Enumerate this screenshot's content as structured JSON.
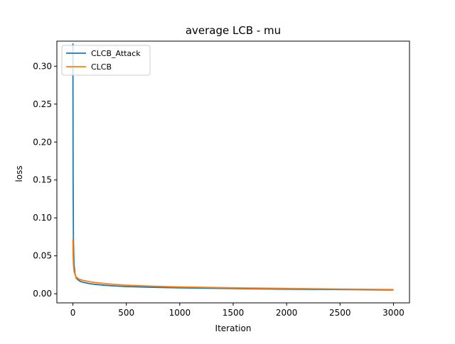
{
  "chart_data": {
    "type": "line",
    "title": "average LCB - mu",
    "xlabel": "Iteration",
    "ylabel": "loss",
    "xlim": [
      -150,
      3150
    ],
    "ylim": [
      -0.012,
      0.333
    ],
    "xticks": [
      0,
      500,
      1000,
      1500,
      2000,
      2500,
      3000
    ],
    "xtick_labels": [
      "0",
      "500",
      "1000",
      "1500",
      "2000",
      "2500",
      "3000"
    ],
    "yticks": [
      0.0,
      0.05,
      0.1,
      0.15,
      0.2,
      0.25,
      0.3
    ],
    "ytick_labels": [
      "0.00",
      "0.05",
      "0.10",
      "0.15",
      "0.20",
      "0.25",
      "0.30"
    ],
    "grid": false,
    "legend_position": "upper-left",
    "series": [
      {
        "name": "CLCB_Attack",
        "color": "#1f77b4",
        "x": [
          0,
          2,
          5,
          10,
          20,
          30,
          50,
          75,
          100,
          150,
          200,
          300,
          400,
          500,
          750,
          1000,
          1500,
          2000,
          2500,
          3000
        ],
        "y": [
          0.33,
          0.15,
          0.07,
          0.04,
          0.026,
          0.021,
          0.018,
          0.016,
          0.015,
          0.0135,
          0.0125,
          0.0112,
          0.0102,
          0.0095,
          0.0085,
          0.0078,
          0.0068,
          0.006,
          0.0055,
          0.005
        ]
      },
      {
        "name": "CLCB",
        "color": "#ff7f0e",
        "x": [
          0,
          2,
          5,
          10,
          20,
          30,
          50,
          75,
          100,
          150,
          200,
          300,
          400,
          500,
          750,
          1000,
          1500,
          2000,
          2500,
          3000
        ],
        "y": [
          0.072,
          0.05,
          0.038,
          0.03,
          0.025,
          0.022,
          0.02,
          0.0185,
          0.0175,
          0.016,
          0.015,
          0.0135,
          0.0122,
          0.0113,
          0.01,
          0.009,
          0.0078,
          0.007,
          0.0062,
          0.0056
        ]
      }
    ]
  }
}
